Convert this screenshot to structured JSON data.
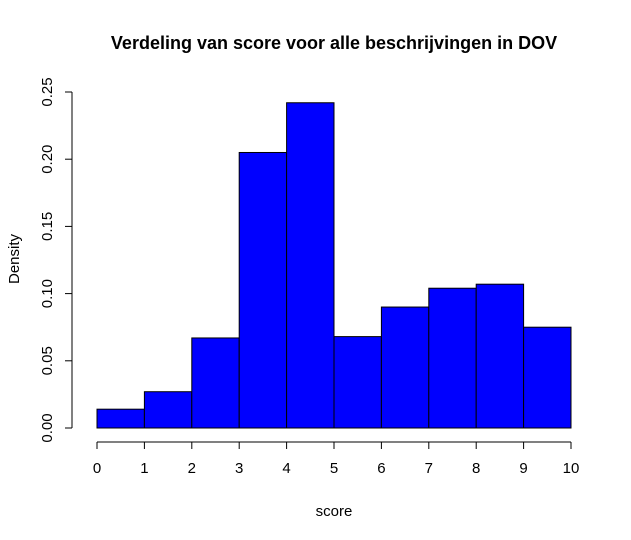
{
  "chart_data": {
    "type": "bar",
    "title": "Verdeling van score voor alle beschrijvingen in DOV",
    "xlabel": "score",
    "ylabel": "Density",
    "bin_edges": [
      0,
      1,
      2,
      3,
      4,
      5,
      6,
      7,
      8,
      9,
      10
    ],
    "values": [
      0.014,
      0.027,
      0.067,
      0.205,
      0.242,
      0.068,
      0.09,
      0.104,
      0.107,
      0.075
    ],
    "xlim": [
      0,
      10
    ],
    "ylim": [
      0,
      0.25
    ],
    "x_ticks": [
      "0",
      "1",
      "2",
      "3",
      "4",
      "5",
      "6",
      "7",
      "8",
      "9",
      "10"
    ],
    "y_ticks": [
      "0.00",
      "0.05",
      "0.10",
      "0.15",
      "0.20",
      "0.25"
    ],
    "bar_color": "#0000ff",
    "grid": false,
    "legend": "none"
  }
}
